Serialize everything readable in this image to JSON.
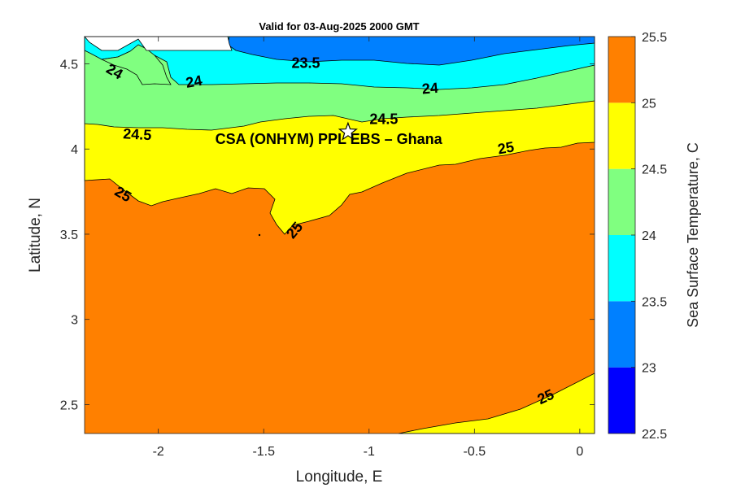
{
  "chart_data": {
    "type": "contour",
    "title": "Valid for 03-Aug-2025 2000 GMT",
    "xlabel": "Longitude, E",
    "ylabel": "Latitude, N",
    "xlim": [
      -2.35,
      0.07
    ],
    "ylim": [
      2.33,
      4.66
    ],
    "x_ticks": [
      -2,
      -1.5,
      -1,
      -0.5,
      0
    ],
    "x_tick_labels": [
      "-2",
      "-1.5",
      "-1",
      "-0.5",
      "0"
    ],
    "y_ticks": [
      2.5,
      3,
      3.5,
      4,
      4.5
    ],
    "y_tick_labels": [
      "2.5",
      "3",
      "3.5",
      "4",
      "4.5"
    ],
    "colorbar": {
      "label": "Sea Surface Temperature, C",
      "levels": [
        22.5,
        23,
        23.5,
        24,
        24.5,
        25,
        25.5
      ],
      "level_labels": [
        "22.5",
        "23",
        "23.5",
        "24",
        "24.5",
        "25",
        "25.5"
      ],
      "colors": [
        "#0000ff",
        "#0080ff",
        "#00ffff",
        "#80ff80",
        "#ffff00",
        "#ff8000"
      ]
    },
    "contour_labels": [
      {
        "text": "24",
        "lon": -2.21,
        "lat": 4.45
      },
      {
        "text": "24",
        "lon": -1.83,
        "lat": 4.39
      },
      {
        "text": "23.5",
        "lon": -1.3,
        "lat": 4.5
      },
      {
        "text": "24",
        "lon": -0.71,
        "lat": 4.35
      },
      {
        "text": "24.5",
        "lon": -2.1,
        "lat": 4.08
      },
      {
        "text": "24.5",
        "lon": -0.93,
        "lat": 4.17
      },
      {
        "text": "25",
        "lon": -0.35,
        "lat": 4.0
      },
      {
        "text": "25",
        "lon": -2.17,
        "lat": 3.73
      },
      {
        "text": "25",
        "lon": -1.35,
        "lat": 3.52
      },
      {
        "text": "25",
        "lon": -0.16,
        "lat": 2.54
      }
    ],
    "marker": {
      "symbol": "star",
      "lon": -1.1,
      "lat": 4.1
    },
    "annotation": "CSA (ONHYM) PPL EBS  – Ghana",
    "annotation_lon": -1.73,
    "annotation_lat": 4.03
  }
}
